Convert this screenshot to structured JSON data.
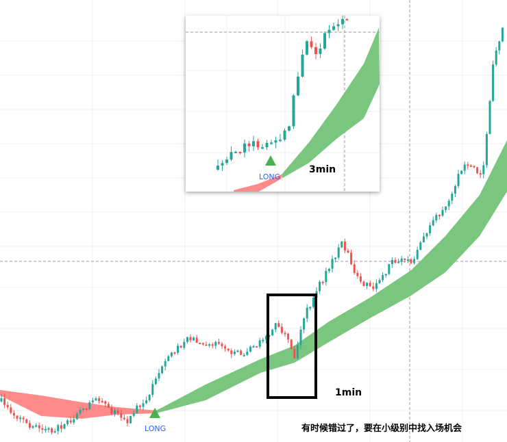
{
  "chart_data": [
    {
      "type": "candlestick",
      "timeframe_label": "1min",
      "signal_label": "LONG",
      "caption": "有时候错过了，要在小级别中找入场机会",
      "grid": true,
      "crosshair": true,
      "colors": {
        "up": "#26a69a",
        "down": "#ef5350",
        "band_bull": "#7bc67e",
        "band_bear": "#ff8a8a",
        "signal": "#4caf50",
        "long_text": "#2962ff"
      }
    },
    {
      "type": "candlestick",
      "timeframe_label": "3min",
      "signal_label": "LONG",
      "grid": true,
      "crosshair": true,
      "colors": {
        "up": "#26a69a",
        "down": "#ef5350",
        "band_bull": "#7bc67e",
        "band_bear": "#ff8a8a",
        "signal": "#4caf50",
        "long_text": "#2962ff"
      }
    }
  ]
}
